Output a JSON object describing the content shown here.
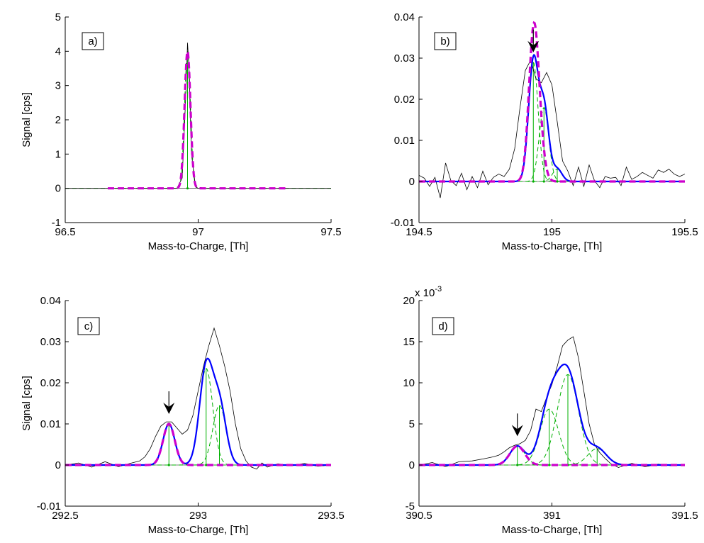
{
  "chart_data": [
    {
      "type": "line",
      "panel_label": "a)",
      "xlabel": "Mass-to-Charge, [Th]",
      "ylabel": "Signal [cps]",
      "xlim": [
        96.5,
        97.5
      ],
      "ylim": [
        -1,
        5
      ],
      "xticks": [
        96.5,
        97,
        97.5
      ],
      "xtick_labels": [
        "96.5",
        "97",
        "97.5"
      ],
      "yticks": [
        -1,
        0,
        1,
        2,
        3,
        4,
        5
      ],
      "ytick_labels": [
        "-1",
        "0",
        "1",
        "2",
        "3",
        "4",
        "5"
      ],
      "exponent_label": "",
      "arrow": null,
      "data_line": {
        "x": [
          96.5,
          96.92,
          96.94,
          96.955,
          96.96,
          96.965,
          96.975,
          96.99,
          97.0,
          97.5
        ],
        "y": [
          0,
          0,
          0.3,
          3.0,
          4.25,
          3.6,
          1.0,
          0.05,
          0,
          0
        ]
      },
      "peak_components": [
        {
          "center": 96.96,
          "height": 4.0,
          "sigma": 0.011
        }
      ],
      "target_fit": {
        "x_range": [
          96.66,
          97.33
        ],
        "peaks": [
          {
            "center": 96.96,
            "height": 4.0,
            "sigma": 0.011
          }
        ]
      },
      "total_fit": null,
      "colors": {
        "data": "#000000",
        "components": "#00b000",
        "target_fit": "#cc00cc",
        "total_fit": "#0000ff"
      }
    },
    {
      "type": "line",
      "panel_label": "b)",
      "xlabel": "Mass-to-Charge, [Th]",
      "ylabel": "",
      "xlim": [
        194.5,
        195.5
      ],
      "ylim": [
        -0.01,
        0.04
      ],
      "xticks": [
        194.5,
        195,
        195.5
      ],
      "xtick_labels": [
        "194.5",
        "195",
        "195.5"
      ],
      "yticks": [
        -0.01,
        0,
        0.01,
        0.02,
        0.03,
        0.04
      ],
      "ytick_labels": [
        "-0.01",
        "0",
        "0.01",
        "0.02",
        "0.03",
        "0.04"
      ],
      "exponent_label": "",
      "arrow": {
        "x": 194.93
      },
      "data_line": {
        "x": [
          194.5,
          194.52,
          194.54,
          194.56,
          194.58,
          194.6,
          194.62,
          194.64,
          194.66,
          194.68,
          194.7,
          194.72,
          194.74,
          194.76,
          194.78,
          194.8,
          194.82,
          194.84,
          194.86,
          194.88,
          194.9,
          194.92,
          194.94,
          194.96,
          194.98,
          195.0,
          195.02,
          195.04,
          195.06,
          195.08,
          195.1,
          195.12,
          195.14,
          195.16,
          195.18,
          195.2,
          195.22,
          195.24,
          195.26,
          195.28,
          195.3,
          195.32,
          195.34,
          195.36,
          195.38,
          195.4,
          195.42,
          195.44,
          195.46,
          195.48,
          195.5
        ],
        "y": [
          0.0015,
          0.0008,
          -0.0012,
          0.001,
          -0.004,
          0.0045,
          0.0002,
          -0.001,
          0.002,
          -0.002,
          0.0012,
          -0.0015,
          0.0025,
          -0.0008,
          0.001,
          0.0018,
          0.0012,
          0.003,
          0.008,
          0.018,
          0.027,
          0.0295,
          0.025,
          0.024,
          0.0265,
          0.0235,
          0.0145,
          0.005,
          0.0025,
          -0.001,
          0.0035,
          -0.0012,
          0.004,
          0.0002,
          -0.0015,
          0.0012,
          0.0008,
          0.001,
          -0.001,
          0.0035,
          0.0005,
          0.0012,
          0.0022,
          0.0015,
          0.0008,
          0.0028,
          0.0022,
          0.003,
          0.0018,
          0.0012,
          0.0018
        ]
      },
      "peak_components": [
        {
          "center": 194.93,
          "height": 0.029,
          "sigma": 0.018
        },
        {
          "center": 194.97,
          "height": 0.018,
          "sigma": 0.018
        },
        {
          "center": 195.02,
          "height": 0.003,
          "sigma": 0.018
        }
      ],
      "target_fit": {
        "x_range": [
          194.5,
          195.5
        ],
        "peaks": [
          {
            "center": 194.93,
            "height": 0.029,
            "sigma": 0.018
          },
          {
            "center": 194.945,
            "height": 0.012,
            "sigma": 0.02
          }
        ]
      },
      "total_fit": {
        "x_range": [
          194.5,
          195.5
        ]
      },
      "colors": {
        "data": "#000000",
        "components": "#00b000",
        "target_fit": "#cc00cc",
        "total_fit": "#0000ff"
      }
    },
    {
      "type": "line",
      "panel_label": "c)",
      "xlabel": "Mass-to-Charge, [Th]",
      "ylabel": "Signal [cps]",
      "xlim": [
        292.5,
        293.5
      ],
      "ylim": [
        -0.01,
        0.04
      ],
      "xticks": [
        292.5,
        293,
        293.5
      ],
      "xtick_labels": [
        "292.5",
        "293",
        "293.5"
      ],
      "yticks": [
        -0.01,
        0,
        0.01,
        0.02,
        0.03,
        0.04
      ],
      "ytick_labels": [
        "-0.01",
        "0",
        "0.01",
        "0.02",
        "0.03",
        "0.04"
      ],
      "exponent_label": "",
      "arrow": {
        "x": 292.89
      },
      "data_line": {
        "x": [
          292.5,
          292.55,
          292.6,
          292.65,
          292.7,
          292.75,
          292.78,
          292.8,
          292.82,
          292.84,
          292.86,
          292.88,
          292.9,
          292.92,
          292.94,
          292.96,
          292.98,
          293.0,
          293.02,
          293.04,
          293.06,
          293.08,
          293.1,
          293.12,
          293.14,
          293.16,
          293.18,
          293.2,
          293.22,
          293.24,
          293.26,
          293.3,
          293.35,
          293.4,
          293.45,
          293.5
        ],
        "y": [
          0,
          0.0005,
          -0.0005,
          0.0008,
          -0.0004,
          0.0005,
          0.001,
          0.002,
          0.004,
          0.007,
          0.0095,
          0.0105,
          0.0105,
          0.009,
          0.0075,
          0.0085,
          0.012,
          0.018,
          0.024,
          0.029,
          0.0333,
          0.029,
          0.024,
          0.018,
          0.01,
          0.004,
          0.001,
          -0.0005,
          -0.001,
          0.0005,
          -0.0005,
          0.0003,
          -0.0002,
          0.0004,
          -0.0003,
          0
        ]
      },
      "peak_components": [
        {
          "center": 292.89,
          "height": 0.01,
          "sigma": 0.022
        },
        {
          "center": 293.03,
          "height": 0.0235,
          "sigma": 0.025
        },
        {
          "center": 293.08,
          "height": 0.0145,
          "sigma": 0.025
        }
      ],
      "target_fit": {
        "x_range": [
          292.5,
          293.5
        ],
        "peaks": [
          {
            "center": 292.89,
            "height": 0.01,
            "sigma": 0.022
          }
        ]
      },
      "total_fit": {
        "x_range": [
          292.5,
          293.5
        ]
      },
      "colors": {
        "data": "#000000",
        "components": "#00b000",
        "target_fit": "#cc00cc",
        "total_fit": "#0000ff"
      }
    },
    {
      "type": "line",
      "panel_label": "d)",
      "xlabel": "Mass-to-Charge, [Th]",
      "ylabel": "",
      "xlim": [
        390.5,
        391.5
      ],
      "ylim": [
        -5,
        20
      ],
      "xticks": [
        390.5,
        391,
        391.5
      ],
      "xtick_labels": [
        "390.5",
        "391",
        "391.5"
      ],
      "yticks": [
        -5,
        0,
        5,
        10,
        15,
        20
      ],
      "ytick_labels": [
        "-5",
        "0",
        "5",
        "10",
        "15",
        "20"
      ],
      "exponent_label": "x 10",
      "exponent_sup": "-3",
      "arrow": {
        "x": 390.87
      },
      "data_line": {
        "x": [
          390.5,
          390.55,
          390.6,
          390.65,
          390.7,
          390.75,
          390.78,
          390.8,
          390.82,
          390.84,
          390.86,
          390.88,
          390.9,
          390.92,
          390.94,
          390.96,
          390.98,
          391.0,
          391.02,
          391.04,
          391.06,
          391.08,
          391.1,
          391.12,
          391.14,
          391.16,
          391.18,
          391.2,
          391.22,
          391.25,
          391.3,
          391.35,
          391.4,
          391.45,
          391.5
        ],
        "y": [
          0,
          0.3,
          -0.2,
          0.4,
          0.5,
          0.8,
          1.0,
          1.2,
          1.6,
          2.1,
          2.4,
          2.6,
          3.0,
          4.2,
          6.8,
          6.5,
          8.2,
          9.8,
          12.0,
          14.5,
          15.2,
          15.6,
          13.0,
          9.0,
          5.0,
          2.5,
          1.5,
          0.8,
          0.2,
          -0.3,
          0.2,
          -0.2,
          0.1,
          -0.1,
          0
        ]
      },
      "peak_components": [
        {
          "center": 390.87,
          "height": 2.3,
          "sigma": 0.028
        },
        {
          "center": 390.99,
          "height": 6.8,
          "sigma": 0.035
        },
        {
          "center": 391.06,
          "height": 11.0,
          "sigma": 0.04
        },
        {
          "center": 391.17,
          "height": 2.0,
          "sigma": 0.035
        }
      ],
      "target_fit": {
        "x_range": [
          390.5,
          391.5
        ],
        "peaks": [
          {
            "center": 390.87,
            "height": 2.3,
            "sigma": 0.028
          }
        ]
      },
      "total_fit": {
        "x_range": [
          390.5,
          391.5
        ]
      },
      "colors": {
        "data": "#000000",
        "components": "#00b000",
        "target_fit": "#cc00cc",
        "total_fit": "#0000ff"
      }
    }
  ]
}
